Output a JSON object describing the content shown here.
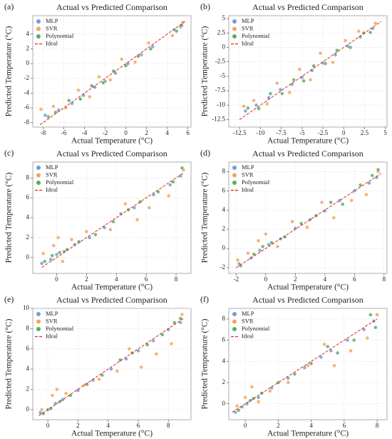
{
  "chart_data": [
    {
      "type": "scatter",
      "panel_label": "(a)",
      "title": "Actual vs Predicted Comparison",
      "xlabel": "Actual Temperature (°C)",
      "ylabel": "Predicted Temperature (°C)",
      "xlim": [
        -9,
        6.3
      ],
      "ylim": [
        -8.6,
        6.5
      ],
      "xticks": [
        -8,
        -6,
        -4,
        -2,
        0,
        2,
        4,
        6
      ],
      "yticks": [
        -8,
        -6,
        -4,
        -2,
        0,
        2,
        4
      ],
      "grid": true,
      "legend": "upper-left",
      "series": [
        {
          "name": "MLP",
          "color": "#6f9fd8",
          "x": [
            -7.8,
            -6.5,
            -5.2,
            -4.1,
            -3.0,
            -2.0,
            -1.0,
            0.2,
            1.5,
            2.6,
            4.7,
            5.3
          ],
          "y": [
            -7.0,
            -6.3,
            -5.4,
            -4.3,
            -3.2,
            -2.4,
            -1.3,
            0.0,
            1.2,
            2.3,
            4.6,
            5.0
          ]
        },
        {
          "name": "SVR",
          "color": "#f5a55a",
          "x": [
            -8.2,
            -7.0,
            -5.8,
            -4.6,
            -3.5,
            -2.6,
            -1.5,
            -0.4,
            0.9,
            2.2,
            4.5,
            5.5
          ],
          "y": [
            -6.2,
            -5.8,
            -6.0,
            -3.6,
            -4.5,
            -1.8,
            -2.2,
            0.6,
            0.2,
            2.8,
            3.8,
            5.6
          ]
        },
        {
          "name": "Polynomial",
          "color": "#5aae61",
          "x": [
            -7.5,
            -6.8,
            -5.5,
            -4.4,
            -3.3,
            -2.2,
            -1.2,
            0.0,
            1.2,
            2.4,
            4.9,
            5.4
          ],
          "y": [
            -7.2,
            -6.6,
            -5.0,
            -4.8,
            -3.0,
            -2.6,
            -1.0,
            -0.3,
            1.0,
            2.0,
            4.4,
            5.2
          ]
        },
        {
          "name": "Ideal",
          "color": "#e0281e",
          "mode": "line",
          "dashed": true,
          "x": [
            -8.3,
            5.8
          ],
          "y": [
            -8.3,
            5.8
          ]
        }
      ]
    },
    {
      "type": "scatter",
      "panel_label": "(b)",
      "title": "Actual vs Predicted Comparison",
      "xlabel": "Actual Temperature (°C)",
      "ylabel": "Predicted Temperature (°C)",
      "xlim": [
        -13.8,
        5.2
      ],
      "ylim": [
        -13.8,
        5.5
      ],
      "xticks": [
        -12.5,
        -10,
        -7.5,
        -5,
        -2.5,
        0,
        2.5,
        5
      ],
      "yticks": [
        -12.5,
        -10,
        -7.5,
        -5,
        -2.5,
        0,
        2.5,
        5
      ],
      "grid": true,
      "legend": "upper-left",
      "series": [
        {
          "name": "MLP",
          "color": "#6f9fd8",
          "x": [
            -11.8,
            -10.5,
            -9.0,
            -7.6,
            -6.2,
            -5.0,
            -3.8,
            -2.5,
            -1.0,
            0.5,
            2.0,
            3.5
          ],
          "y": [
            -11.0,
            -10.0,
            -8.7,
            -7.3,
            -6.4,
            -5.2,
            -4.0,
            -2.7,
            -1.3,
            0.2,
            1.8,
            3.3
          ]
        },
        {
          "name": "SVR",
          "color": "#f5a55a",
          "x": [
            -12.0,
            -10.8,
            -9.2,
            -8.0,
            -6.5,
            -5.3,
            -4.0,
            -2.8,
            -1.3,
            0.2,
            1.8,
            3.8
          ],
          "y": [
            -10.2,
            -9.2,
            -9.8,
            -6.2,
            -7.8,
            -3.8,
            -5.6,
            -1.0,
            -2.6,
            1.2,
            2.8,
            4.2
          ]
        },
        {
          "name": "Polynomial",
          "color": "#5aae61",
          "x": [
            -11.5,
            -10.2,
            -8.8,
            -7.4,
            -6.0,
            -4.8,
            -3.6,
            -2.2,
            -0.8,
            0.8,
            2.4,
            3.2
          ],
          "y": [
            -10.5,
            -10.6,
            -8.0,
            -8.0,
            -5.6,
            -5.8,
            -3.2,
            -2.8,
            -0.5,
            0.0,
            2.5,
            2.6
          ]
        },
        {
          "name": "Ideal",
          "color": "#e0281e",
          "mode": "line",
          "dashed": true,
          "x": [
            -12.5,
            4.5
          ],
          "y": [
            -12.5,
            4.5
          ]
        }
      ]
    },
    {
      "type": "scatter",
      "panel_label": "(c)",
      "title": "Actual vs Predicted Comparison",
      "xlabel": "Actual Temperature (°C)",
      "ylabel": "Predicted Temperature (°C)",
      "xlim": [
        -1.6,
        9.0
      ],
      "ylim": [
        -1.6,
        9.6
      ],
      "xticks": [
        0,
        2,
        4,
        6,
        8
      ],
      "yticks": [
        0,
        2,
        4,
        6,
        8
      ],
      "grid": true,
      "legend": "upper-left",
      "series": [
        {
          "name": "MLP",
          "color": "#6f9fd8",
          "x": [
            -1.0,
            -0.4,
            0.0,
            0.5,
            1.2,
            2.2,
            3.2,
            4.3,
            5.2,
            6.5,
            7.6,
            8.3
          ],
          "y": [
            -0.6,
            -0.2,
            0.3,
            0.6,
            1.3,
            2.0,
            3.0,
            4.4,
            5.0,
            6.3,
            7.3,
            8.2
          ]
        },
        {
          "name": "SVR",
          "color": "#f5a55a",
          "x": [
            -0.9,
            -0.2,
            0.1,
            0.4,
            1.0,
            2.0,
            3.6,
            4.6,
            5.4,
            6.2,
            7.5,
            8.5
          ],
          "y": [
            0.4,
            1.2,
            2.0,
            -0.4,
            1.8,
            2.6,
            2.8,
            5.4,
            3.8,
            5.0,
            6.2,
            8.8
          ]
        },
        {
          "name": "Polynomial",
          "color": "#5aae61",
          "x": [
            -0.8,
            -0.3,
            0.2,
            0.7,
            1.5,
            2.6,
            3.8,
            4.8,
            5.6,
            6.8,
            7.8,
            8.4
          ],
          "y": [
            -0.4,
            0.2,
            0.5,
            0.8,
            1.6,
            2.3,
            3.6,
            4.8,
            5.6,
            6.6,
            7.6,
            9.0
          ]
        },
        {
          "name": "Ideal",
          "color": "#e0281e",
          "mode": "line",
          "dashed": true,
          "x": [
            -1.0,
            8.5
          ],
          "y": [
            -1.0,
            8.5
          ]
        }
      ]
    },
    {
      "type": "scatter",
      "panel_label": "(d)",
      "title": "Actual vs Predicted Comparison",
      "xlabel": "Actual Temperature (°C)",
      "ylabel": "Predicted Temperature (°C)",
      "xlim": [
        -2.5,
        8.2
      ],
      "ylim": [
        -2.6,
        9.0
      ],
      "xticks": [
        -2,
        0,
        2,
        4,
        6,
        8
      ],
      "yticks": [
        -2,
        0,
        2,
        4,
        6,
        8
      ],
      "grid": true,
      "legend": "upper-left",
      "series": [
        {
          "name": "MLP",
          "color": "#6f9fd8",
          "x": [
            -1.8,
            -1.0,
            -0.4,
            0.2,
            1.0,
            2.0,
            3.0,
            4.0,
            5.0,
            6.0,
            7.0,
            7.5
          ],
          "y": [
            -1.6,
            -1.0,
            -0.2,
            0.4,
            1.0,
            2.1,
            3.0,
            3.9,
            5.0,
            6.0,
            6.8,
            7.4
          ]
        },
        {
          "name": "SVR",
          "color": "#f5a55a",
          "x": [
            -1.9,
            -1.2,
            -0.5,
            0.0,
            0.8,
            1.8,
            2.8,
            3.8,
            4.6,
            5.8,
            6.8,
            7.6
          ],
          "y": [
            -1.2,
            -0.5,
            0.8,
            1.5,
            0.2,
            2.8,
            2.2,
            4.8,
            3.2,
            5.0,
            5.6,
            8.0
          ]
        },
        {
          "name": "Polynomial",
          "color": "#5aae61",
          "x": [
            -1.7,
            -0.8,
            -0.2,
            0.4,
            1.3,
            2.4,
            3.4,
            4.4,
            5.2,
            6.4,
            7.2,
            7.6
          ],
          "y": [
            -1.8,
            -0.6,
            0.2,
            0.6,
            1.2,
            2.6,
            3.4,
            4.8,
            4.6,
            6.6,
            7.6,
            8.2
          ]
        },
        {
          "name": "Ideal",
          "color": "#e0281e",
          "mode": "line",
          "dashed": true,
          "x": [
            -2.0,
            7.8
          ],
          "y": [
            -2.0,
            7.8
          ]
        }
      ]
    },
    {
      "type": "scatter",
      "panel_label": "(e)",
      "title": "Actual vs Predicted Comparison",
      "xlabel": "Actual Temperature (°C)",
      "ylabel": "Predicted Temperature (°C)",
      "xlim": [
        -1.0,
        9.5
      ],
      "ylim": [
        -1.0,
        10.0
      ],
      "xticks": [
        0,
        2,
        4,
        6,
        8
      ],
      "yticks": [
        0,
        2,
        4,
        6,
        8,
        10
      ],
      "grid": true,
      "legend": "upper-left",
      "series": [
        {
          "name": "MLP",
          "color": "#6f9fd8",
          "x": [
            -0.5,
            0.0,
            0.5,
            1.0,
            2.0,
            3.0,
            4.2,
            5.2,
            6.0,
            7.0,
            8.0,
            8.8
          ],
          "y": [
            -0.3,
            0.0,
            0.6,
            1.0,
            1.9,
            2.9,
            4.0,
            5.0,
            5.8,
            6.8,
            7.9,
            8.6
          ]
        },
        {
          "name": "SVR",
          "color": "#f5a55a",
          "x": [
            -0.4,
            0.3,
            0.6,
            1.2,
            2.4,
            3.4,
            4.6,
            5.4,
            6.2,
            7.2,
            8.2,
            8.9
          ],
          "y": [
            0.0,
            1.4,
            2.0,
            1.6,
            2.4,
            3.0,
            3.8,
            6.0,
            4.2,
            5.5,
            6.5,
            9.4
          ]
        },
        {
          "name": "Polynomial",
          "color": "#5aae61",
          "x": [
            -0.3,
            0.2,
            0.8,
            1.5,
            2.6,
            3.6,
            4.8,
            5.6,
            6.6,
            7.6,
            8.4,
            8.8
          ],
          "y": [
            -0.4,
            0.1,
            0.8,
            1.4,
            2.5,
            3.4,
            4.9,
            5.6,
            6.4,
            7.4,
            8.6,
            9.0
          ]
        },
        {
          "name": "Ideal",
          "color": "#e0281e",
          "mode": "line",
          "dashed": true,
          "x": [
            -0.6,
            9.0
          ],
          "y": [
            -0.6,
            9.0
          ]
        }
      ]
    },
    {
      "type": "scatter",
      "panel_label": "(f)",
      "title": "Actual vs Predicted Comparison",
      "xlabel": "Actual Temperature (°C)",
      "ylabel": "Predicted Temperature (°C)",
      "xlim": [
        -1.0,
        8.6
      ],
      "ylim": [
        -1.5,
        9.0
      ],
      "xticks": [
        0,
        2,
        4,
        6,
        8
      ],
      "yticks": [
        0,
        2,
        4,
        6,
        8
      ],
      "grid": true,
      "legend": "upper-left",
      "series": [
        {
          "name": "MLP",
          "color": "#6f9fd8",
          "x": [
            -0.6,
            -0.2,
            0.3,
            0.8,
            1.6,
            2.6,
            3.6,
            4.6,
            5.2,
            6.2,
            7.2,
            7.8
          ],
          "y": [
            -0.8,
            -0.3,
            0.3,
            0.6,
            1.5,
            2.4,
            3.4,
            4.4,
            5.0,
            6.0,
            7.0,
            7.8
          ]
        },
        {
          "name": "SVR",
          "color": "#f5a55a",
          "x": [
            -0.5,
            0.0,
            0.4,
            0.8,
            1.5,
            2.6,
            3.8,
            4.8,
            5.4,
            6.4,
            7.4,
            8.0
          ],
          "y": [
            -0.2,
            0.6,
            1.6,
            0.2,
            1.2,
            2.0,
            3.6,
            5.6,
            3.6,
            5.0,
            6.2,
            8.4
          ]
        },
        {
          "name": "Polynomial",
          "color": "#5aae61",
          "x": [
            -0.4,
            0.1,
            0.5,
            1.0,
            2.0,
            3.0,
            4.0,
            5.0,
            5.6,
            6.6,
            7.6,
            7.9
          ],
          "y": [
            -0.6,
            0.0,
            0.5,
            1.0,
            2.0,
            2.8,
            3.8,
            5.4,
            4.8,
            6.0,
            8.4,
            7.2
          ]
        },
        {
          "name": "Ideal",
          "color": "#e0281e",
          "mode": "line",
          "dashed": true,
          "x": [
            -0.8,
            8.0
          ],
          "y": [
            -0.8,
            8.0
          ]
        }
      ]
    }
  ]
}
